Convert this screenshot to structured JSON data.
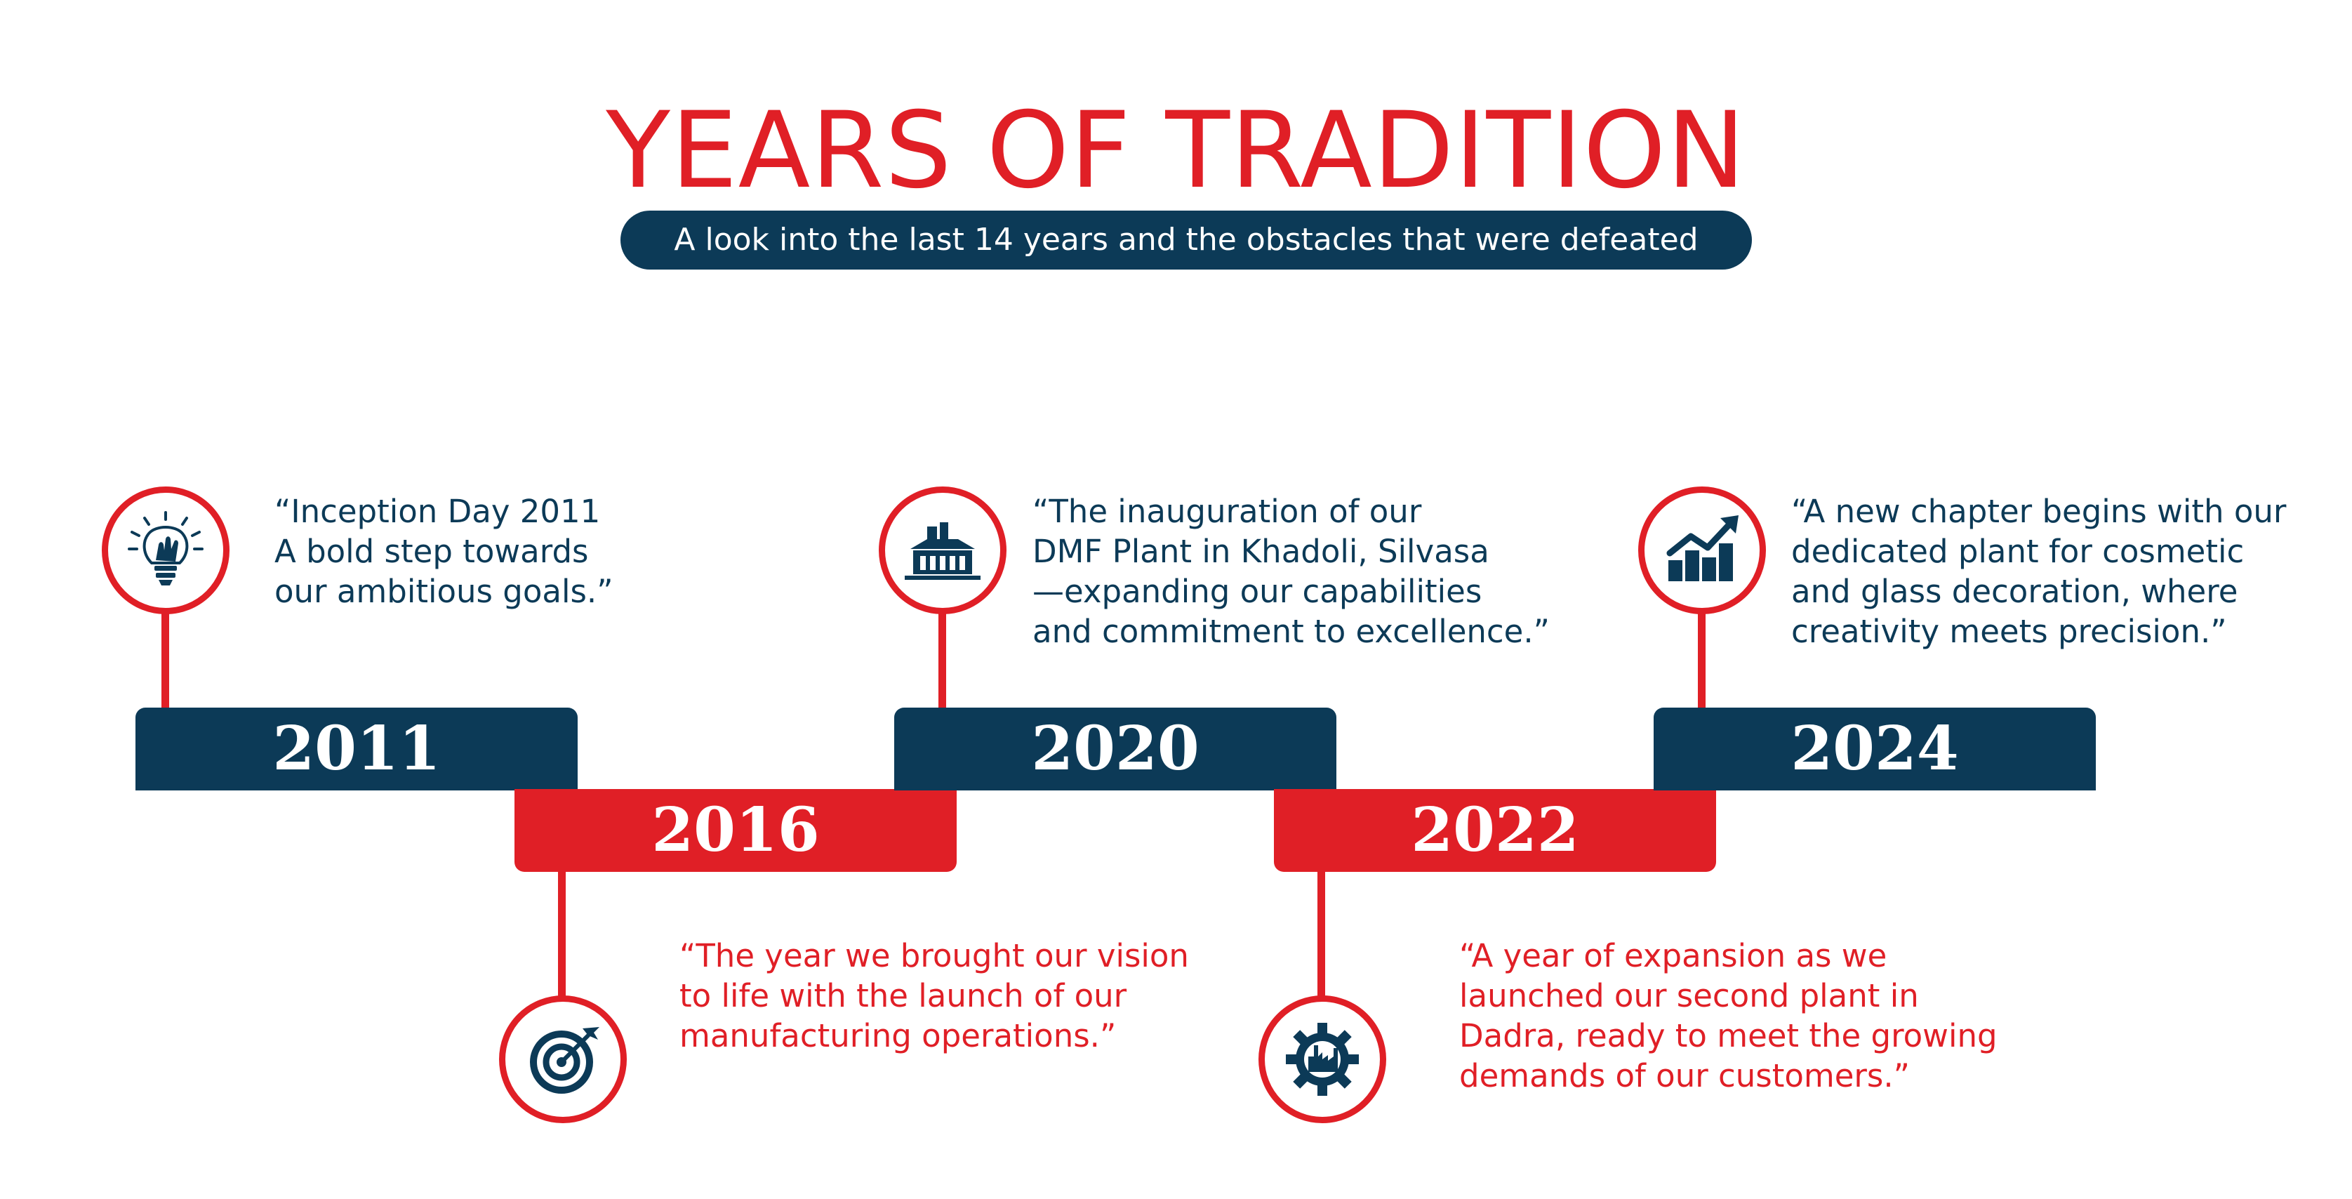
{
  "header": {
    "title": "YEARS OF TRADITION",
    "subtitle": "A look into the last 14 years and the obstacles that were defeated"
  },
  "colors": {
    "red": "#e01f26",
    "navy": "#0c3a57",
    "background": "#ffffff"
  },
  "milestones": [
    {
      "year": "2011",
      "icon": "lightbulb-hand-icon",
      "quote": "“Inception Day 2011\n A bold step towards\nour ambitious goals.”"
    },
    {
      "year": "2016",
      "icon": "target-icon",
      "quote": "“The year we brought our vision\nto life with the launch of our\nmanufacturing operations.”"
    },
    {
      "year": "2020",
      "icon": "factory-icon",
      "quote": "“The inauguration of our\nDMF Plant in Khadoli, Silvasa\n—expanding our capabilities\nand commitment to excellence.”"
    },
    {
      "year": "2022",
      "icon": "industry-gear-icon",
      "quote": "“A year of expansion as we\nlaunched our second plant in\nDadra, ready to meet the growing\ndemands of our customers.”"
    },
    {
      "year": "2024",
      "icon": "growth-chart-icon",
      "quote": "“A new chapter begins with our\ndedicated plant for cosmetic\nand glass decoration, where\ncreativity meets precision.”"
    }
  ]
}
